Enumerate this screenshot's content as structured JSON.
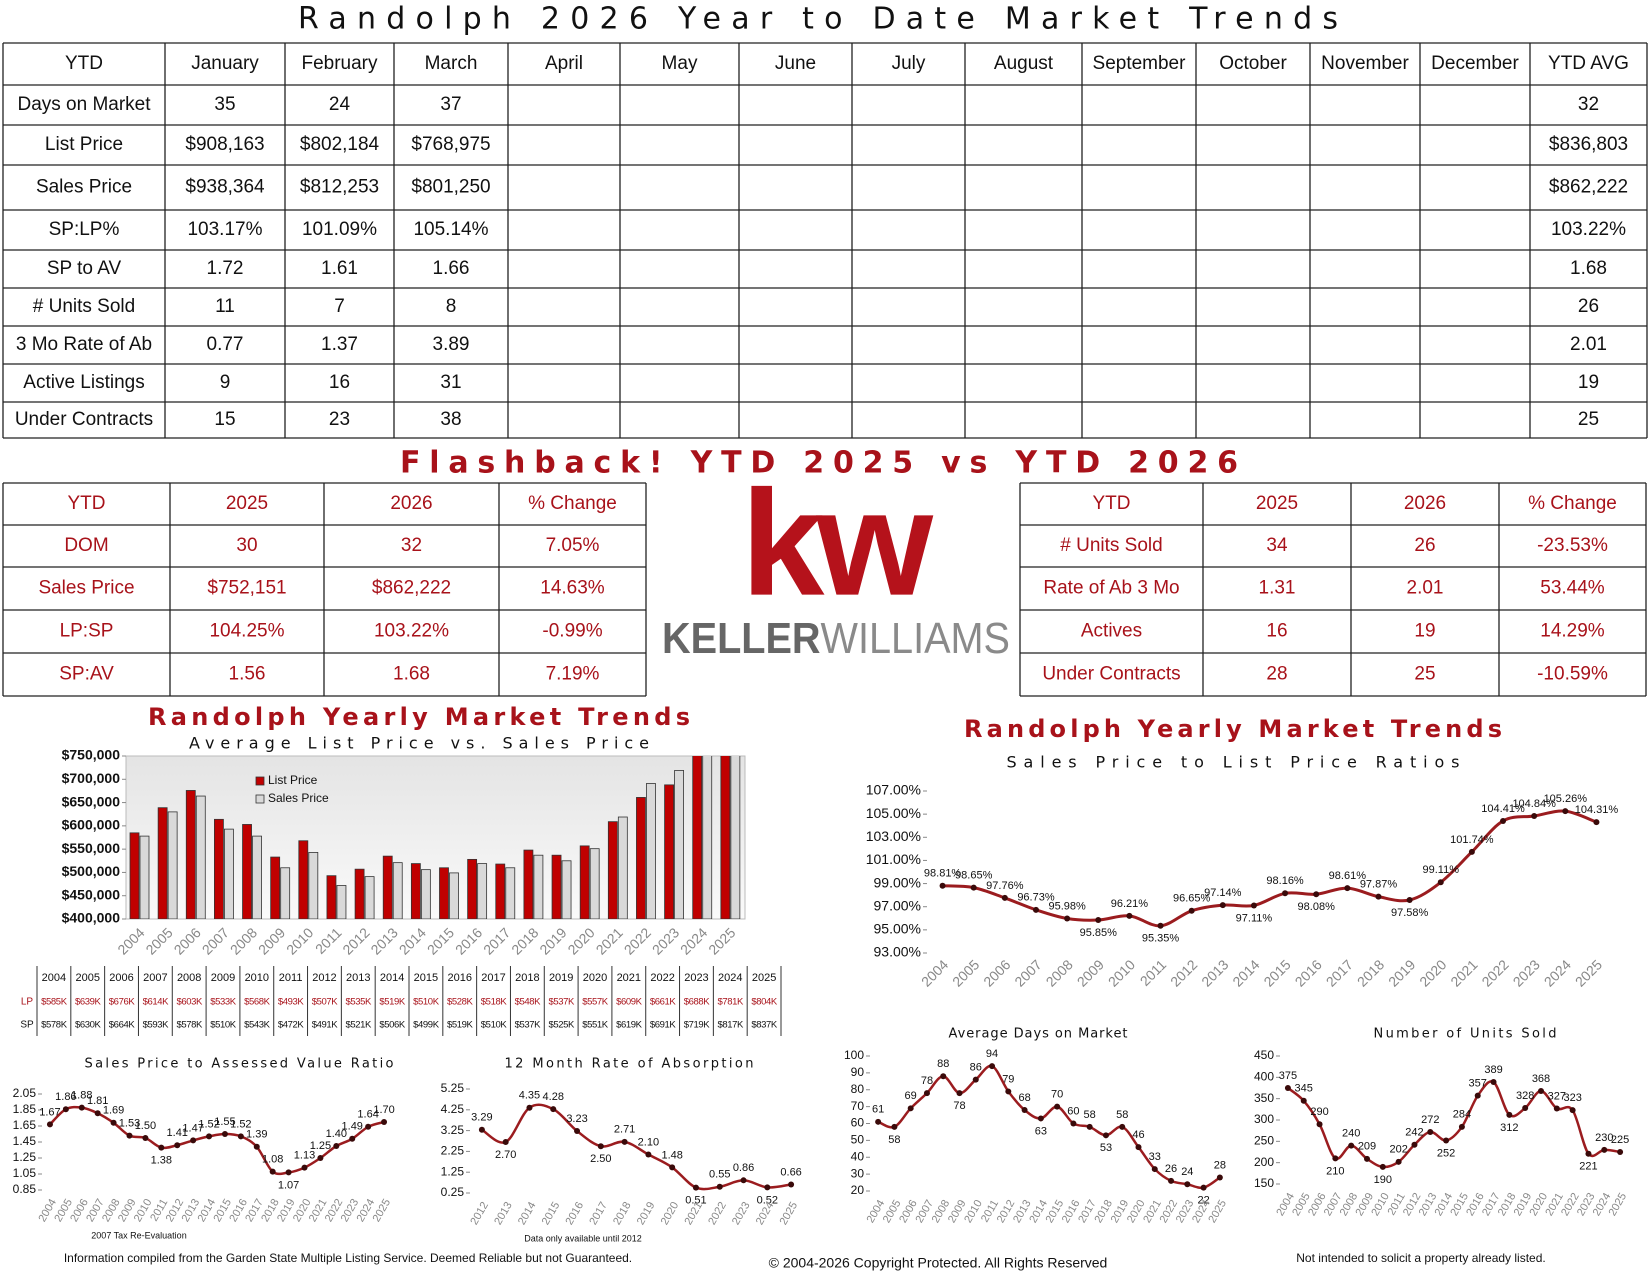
{
  "header": {
    "title": "Randolph 2026 Year to Date Market Trends"
  },
  "ytd_table": {
    "columns": [
      "YTD",
      "January",
      "February",
      "March",
      "April",
      "May",
      "June",
      "July",
      "August",
      "September",
      "October",
      "November",
      "December",
      "YTD AVG"
    ],
    "rows": [
      {
        "label": "Days on Market",
        "months": [
          "35",
          "24",
          "37"
        ],
        "avg": "32"
      },
      {
        "label": "List Price",
        "months": [
          "$908,163",
          "$802,184",
          "$768,975"
        ],
        "avg": "$836,803"
      },
      {
        "label": "Sales Price",
        "months": [
          "$938,364",
          "$812,253",
          "$801,250"
        ],
        "avg": "$862,222"
      },
      {
        "label": "SP:LP%",
        "months": [
          "103.17%",
          "101.09%",
          "105.14%"
        ],
        "avg": "103.22%"
      },
      {
        "label": "SP to AV",
        "months": [
          "1.72",
          "1.61",
          "1.66"
        ],
        "avg": "1.68"
      },
      {
        "label": "# Units Sold",
        "months": [
          "11",
          "7",
          "8"
        ],
        "avg": "26"
      },
      {
        "label": "3 Mo Rate of Ab",
        "months": [
          "0.77",
          "1.37",
          "3.89"
        ],
        "avg": "2.01"
      },
      {
        "label": "Active Listings",
        "months": [
          "9",
          "16",
          "31"
        ],
        "avg": "19"
      },
      {
        "label": "Under Contracts",
        "months": [
          "15",
          "23",
          "38"
        ],
        "avg": "25"
      }
    ]
  },
  "flashback": {
    "title": "Flashback!  YTD 2025 vs YTD 2026",
    "tables": [
      {
        "columns": [
          "YTD",
          "2025",
          "2026",
          "% Change"
        ],
        "rows": [
          [
            "DOM",
            "30",
            "32",
            "7.05%"
          ],
          [
            "Sales Price",
            "$752,151",
            "$862,222",
            "14.63%"
          ],
          [
            "LP:SP",
            "104.25%",
            "103.22%",
            "-0.99%"
          ],
          [
            "SP:AV",
            "1.56",
            "1.68",
            "7.19%"
          ]
        ]
      },
      {
        "columns": [
          "YTD",
          "2025",
          "2026",
          "% Change"
        ],
        "rows": [
          [
            "# Units Sold",
            "34",
            "26",
            "-23.53%"
          ],
          [
            "Rate of Ab 3 Mo",
            "1.31",
            "2.01",
            "53.44%"
          ],
          [
            "Actives",
            "16",
            "19",
            "14.29%"
          ],
          [
            "Under Contracts",
            "28",
            "25",
            "-10.59%"
          ]
        ]
      }
    ]
  },
  "logo": {
    "mark": "kw",
    "name_bold": "KELLER",
    "name_light": "WILLIAMS"
  },
  "chart_data": [
    {
      "type": "bar",
      "title": "Randolph Yearly Market Trends",
      "subtitle": "Average List Price vs. Sales Price",
      "categories": [
        "2004",
        "2005",
        "2006",
        "2007",
        "2008",
        "2009",
        "2010",
        "2011",
        "2012",
        "2013",
        "2014",
        "2015",
        "2016",
        "2017",
        "2018",
        "2019",
        "2020",
        "2021",
        "2022",
        "2023",
        "2024",
        "2025"
      ],
      "series": [
        {
          "name": "List Price",
          "row_label": "LP",
          "color": "#c00000",
          "values": [
            585000,
            639000,
            676000,
            614000,
            603000,
            533000,
            568000,
            493000,
            507000,
            535000,
            519000,
            510000,
            528000,
            518000,
            548000,
            537000,
            557000,
            609000,
            661000,
            688000,
            781000,
            804000
          ],
          "value_labels": [
            "$585K",
            "$639K",
            "$676K",
            "$614K",
            "$603K",
            "$533K",
            "$568K",
            "$493K",
            "$507K",
            "$535K",
            "$519K",
            "$510K",
            "$528K",
            "$518K",
            "$548K",
            "$537K",
            "$557K",
            "$609K",
            "$661K",
            "$688K",
            "$781K",
            "$804K"
          ]
        },
        {
          "name": "Sales Price",
          "row_label": "SP",
          "color": "#d9d9d9",
          "values": [
            578000,
            630000,
            664000,
            593000,
            578000,
            510000,
            543000,
            472000,
            491000,
            521000,
            506000,
            499000,
            519000,
            510000,
            537000,
            525000,
            551000,
            619000,
            691000,
            719000,
            817000,
            837000
          ],
          "value_labels": [
            "$578K",
            "$630K",
            "$664K",
            "$593K",
            "$578K",
            "$510K",
            "$543K",
            "$472K",
            "$491K",
            "$521K",
            "$506K",
            "$499K",
            "$519K",
            "$510K",
            "$537K",
            "$525K",
            "$551K",
            "$619K",
            "$691K",
            "$719K",
            "$817K",
            "$837K"
          ]
        }
      ],
      "ylim": [
        400000,
        750000
      ],
      "yticks": [
        {
          "value": 400000,
          "label": "$400,000"
        },
        {
          "value": 450000,
          "label": "$450,000"
        },
        {
          "value": 500000,
          "label": "$500,000"
        },
        {
          "value": 550000,
          "label": "$550,000"
        },
        {
          "value": 600000,
          "label": "$600,000"
        },
        {
          "value": 650000,
          "label": "$650,000"
        },
        {
          "value": 700000,
          "label": "$700,000"
        },
        {
          "value": 750000,
          "label": "$750,000"
        }
      ],
      "grid": false,
      "legend": "top-left"
    },
    {
      "type": "line",
      "title": "Randolph Yearly Market Trends",
      "subtitle": "Sales Price to List Price Ratios",
      "color": "#9b1c1f",
      "categories": [
        "2004",
        "2005",
        "2006",
        "2007",
        "2008",
        "2009",
        "2010",
        "2011",
        "2012",
        "2013",
        "2014",
        "2015",
        "2016",
        "2017",
        "2018",
        "2019",
        "2020",
        "2021",
        "2022",
        "2023",
        "2024",
        "2025"
      ],
      "values": [
        98.81,
        98.65,
        97.76,
        96.73,
        95.98,
        95.85,
        96.21,
        95.35,
        96.65,
        97.14,
        97.11,
        98.16,
        98.08,
        98.61,
        97.87,
        97.58,
        99.11,
        101.74,
        104.41,
        104.84,
        105.26,
        104.31
      ],
      "value_labels": [
        "98.81%",
        "98.65%",
        "97.76%",
        "96.73%",
        "95.98%",
        "95.85%",
        "96.21%",
        "95.35%",
        "96.65%",
        "97.14%",
        "97.11%",
        "98.16%",
        "98.08%",
        "98.61%",
        "97.87%",
        "97.58%",
        "99.11%",
        "101.74%",
        "104.41%",
        "104.84%",
        "105.26%",
        "104.31%"
      ],
      "ylim": [
        93,
        107
      ],
      "yticks": [
        {
          "value": 93,
          "label": "93.00%"
        },
        {
          "value": 95,
          "label": "95.00%"
        },
        {
          "value": 97,
          "label": "97.00%"
        },
        {
          "value": 99,
          "label": "99.00%"
        },
        {
          "value": 101,
          "label": "101.00%"
        },
        {
          "value": 103,
          "label": "103.00%"
        },
        {
          "value": 105,
          "label": "105.00%"
        },
        {
          "value": 107,
          "label": "107.00%"
        }
      ],
      "grid": false
    },
    {
      "type": "line",
      "title": "Sales Price to Assessed Value Ratio",
      "color": "#9b1c1f",
      "annotation": "2007 Tax Re-Evaluation",
      "categories": [
        "2004",
        "2005",
        "2006",
        "2007",
        "2008",
        "2009",
        "2010",
        "2011",
        "2012",
        "2013",
        "2014",
        "2015",
        "2016",
        "2017",
        "2018",
        "2019",
        "2020",
        "2021",
        "2022",
        "2023",
        "2024",
        "2025"
      ],
      "values": [
        1.67,
        1.86,
        1.88,
        1.81,
        1.69,
        1.53,
        1.5,
        1.38,
        1.41,
        1.47,
        1.52,
        1.55,
        1.52,
        1.39,
        1.08,
        1.07,
        1.13,
        1.25,
        1.4,
        1.49,
        1.64,
        1.7
      ],
      "value_labels": [
        "1.67",
        "1.86",
        "1.88",
        "1.81",
        "1.69",
        "1.53",
        "1.50",
        "1.38",
        "1.41",
        "1.47",
        "1.52",
        "1.55",
        "1.52",
        "1.39",
        "1.08",
        "1.07",
        "1.13",
        "1.25",
        "1.40",
        "1.49",
        "1.64",
        "1.70"
      ],
      "ylim": [
        0.85,
        2.05
      ],
      "yticks": [
        0.85,
        1.05,
        1.25,
        1.45,
        1.65,
        1.85,
        2.05
      ],
      "grid": false
    },
    {
      "type": "line",
      "title": "12 Month Rate of Absorption",
      "color": "#9b1c1f",
      "annotation": "Data only available until 2012",
      "categories": [
        "2012",
        "2013",
        "2014",
        "2015",
        "2016",
        "2017",
        "2018",
        "2019",
        "2020",
        "2021",
        "2022",
        "2023",
        "2024",
        "2025"
      ],
      "values": [
        3.29,
        2.7,
        4.35,
        4.28,
        3.23,
        2.5,
        2.71,
        2.1,
        1.48,
        0.51,
        0.55,
        0.86,
        0.52,
        0.66
      ],
      "value_labels": [
        "3.29",
        "2.70",
        "4.35",
        "4.28",
        "3.23",
        "2.50",
        "2.71",
        "2.10",
        "1.48",
        "0.51",
        "0.55",
        "0.86",
        "0.52",
        "0.66"
      ],
      "ylim": [
        0.25,
        5.25
      ],
      "yticks": [
        0.25,
        1.25,
        2.25,
        3.25,
        4.25,
        5.25
      ],
      "grid": false
    },
    {
      "type": "line",
      "title": "Average Days on Market",
      "color": "#9b1c1f",
      "categories": [
        "2004",
        "2005",
        "2006",
        "2007",
        "2008",
        "2009",
        "2010",
        "2011",
        "2012",
        "2013",
        "2014",
        "2015",
        "2016",
        "2017",
        "2018",
        "2019",
        "2020",
        "2021",
        "2022",
        "2023",
        "2024",
        "2025"
      ],
      "values": [
        61,
        58,
        69,
        78,
        88,
        78,
        86,
        94,
        79,
        68,
        63,
        70,
        60,
        58,
        53,
        58,
        46,
        33,
        26,
        24,
        22,
        28
      ],
      "ylim": [
        20,
        100
      ],
      "yticks": [
        20,
        30,
        40,
        50,
        60,
        70,
        80,
        90,
        100
      ],
      "grid": false
    },
    {
      "type": "line",
      "title": "Number of Units Sold",
      "color": "#9b1c1f",
      "categories": [
        "2004",
        "2005",
        "2006",
        "2007",
        "2008",
        "2009",
        "2010",
        "2011",
        "2012",
        "2013",
        "2014",
        "2015",
        "2016",
        "2017",
        "2018",
        "2019",
        "2020",
        "2021",
        "2022",
        "2023",
        "2024",
        "2025"
      ],
      "values": [
        375,
        345,
        290,
        210,
        240,
        209,
        190,
        202,
        242,
        272,
        252,
        284,
        357,
        389,
        312,
        328,
        368,
        327,
        323,
        221,
        230,
        225
      ],
      "ylim": [
        150,
        450
      ],
      "yticks": [
        150,
        200,
        250,
        300,
        350,
        400,
        450
      ],
      "grid": false
    }
  ],
  "footer": {
    "left": "Information compiled from the Garden State Multiple Listing Service.  Deemed Reliable but not Guaranteed.",
    "center": "© 2004-2026 Copyright Protected.  All Rights Reserved",
    "right": "Not intended to solicit a property already listed."
  }
}
